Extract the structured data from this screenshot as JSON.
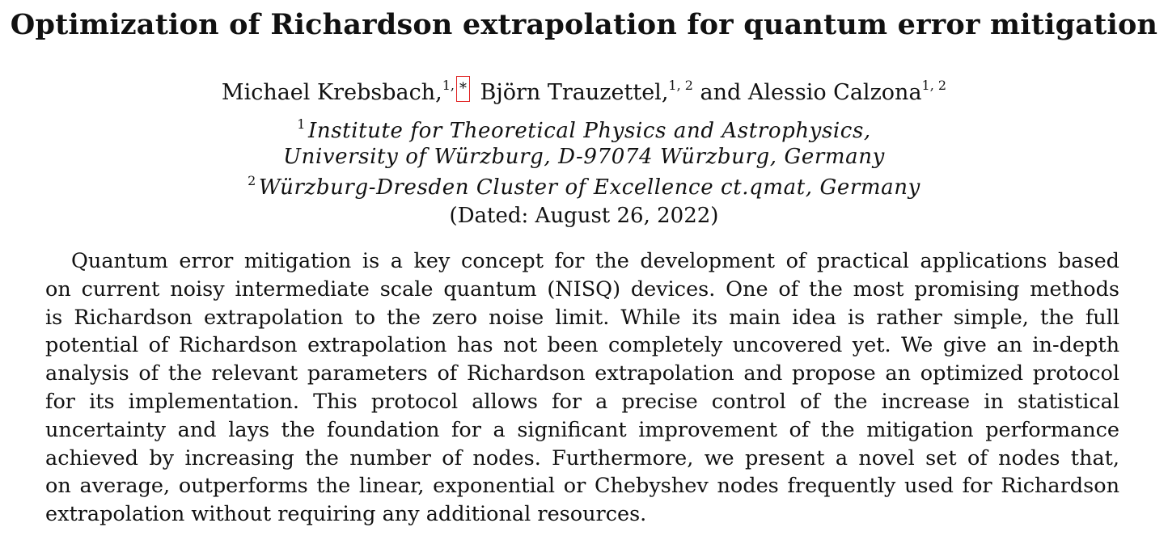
{
  "title": "Optimization of Richardson extrapolation for quantum error mitigation",
  "authors": [
    {
      "name": "Michael Krebsbach,",
      "affils": "1,"
    },
    {
      "name": "Björn Trauzettel,",
      "affils": "1, 2"
    },
    {
      "name": "and Alessio Calzona",
      "affils": "1, 2"
    }
  ],
  "footnote_mark": "*",
  "affiliations": [
    {
      "mark": "1",
      "text": "Institute for Theoretical Physics and Astrophysics,"
    },
    {
      "mark": "",
      "text": "University of Würzburg, D-97074 Würzburg, Germany"
    },
    {
      "mark": "2",
      "text": "Würzburg-Dresden Cluster of Excellence ct.qmat, Germany"
    }
  ],
  "date": "(Dated: August 26, 2022)",
  "abstract_lines": [
    "Quantum error mitigation is a key concept for the development of practical applications based",
    "on current noisy intermediate scale quantum (NISQ) devices. One of the most promising methods",
    "is Richardson extrapolation to the zero noise limit. While its main idea is rather simple, the full",
    "potential of Richardson extrapolation has not been completely uncovered yet. We give an in-depth",
    "analysis of the relevant parameters of Richardson extrapolation and propose an optimized protocol",
    "for its implementation. This protocol allows for a precise control of the increase in statistical",
    "uncertainty and lays the foundation for a significant improvement of the mitigation performance",
    "achieved by increasing the number of nodes. Furthermore, we present a novel set of nodes that,",
    "on average, outperforms the linear, exponential or Chebyshev nodes frequently used for Richardson",
    "extrapolation without requiring any additional resources."
  ],
  "colors": {
    "footnote_box": "#e02020"
  }
}
